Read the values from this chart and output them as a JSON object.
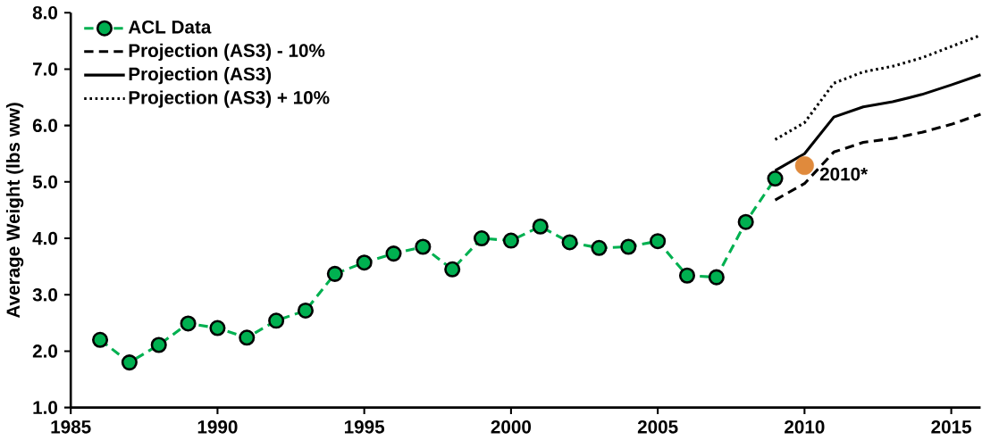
{
  "chart_data": {
    "type": "line",
    "ylabel": "Average Weight (lbs ww)",
    "xlim": [
      1985,
      2016
    ],
    "ylim": [
      1,
      8
    ],
    "xticks": [
      1985,
      1990,
      1995,
      2000,
      2005,
      2010,
      2015
    ],
    "yticks": [
      {
        "value": 1,
        "label": "1.0"
      },
      {
        "value": 2,
        "label": "2.0"
      },
      {
        "value": 3,
        "label": "3.0"
      },
      {
        "value": 4,
        "label": "4.0"
      },
      {
        "value": 5,
        "label": "5.0"
      },
      {
        "value": 6,
        "label": "6.0"
      },
      {
        "value": 7,
        "label": "7.0"
      },
      {
        "value": 8,
        "label": "8.0"
      }
    ],
    "legend": "top left",
    "series": [
      {
        "name": "ACL Data",
        "color": "#00b050",
        "line_style": "dashed",
        "marker": "circle",
        "x": [
          1986,
          1987,
          1988,
          1989,
          1990,
          1991,
          1992,
          1993,
          1994,
          1995,
          1996,
          1997,
          1998,
          1999,
          2000,
          2001,
          2002,
          2003,
          2004,
          2005,
          2006,
          2007,
          2008,
          2009
        ],
        "values": [
          2.2,
          1.8,
          2.11,
          2.49,
          2.41,
          2.24,
          2.54,
          2.72,
          3.37,
          3.57,
          3.73,
          3.85,
          3.45,
          4.0,
          3.96,
          4.21,
          3.93,
          3.83,
          3.85,
          3.95,
          3.34,
          3.31,
          4.29,
          5.06
        ]
      },
      {
        "name": "Projection (AS3) - 10%",
        "color": "#000000",
        "line_style": "dashed",
        "marker": "none",
        "x": [
          2009,
          2010,
          2011,
          2012,
          2013,
          2014,
          2015,
          2016
        ],
        "values": [
          4.68,
          4.97,
          5.53,
          5.7,
          5.77,
          5.88,
          6.02,
          6.2
        ]
      },
      {
        "name": "Projection (AS3)",
        "color": "#000000",
        "line_style": "solid",
        "marker": "none",
        "x": [
          2009,
          2010,
          2011,
          2012,
          2013,
          2014,
          2015,
          2016
        ],
        "values": [
          5.2,
          5.5,
          6.15,
          6.33,
          6.42,
          6.55,
          6.72,
          6.9
        ]
      },
      {
        "name": "Projection (AS3) + 10%",
        "color": "#000000",
        "line_style": "dotted",
        "marker": "none",
        "x": [
          2009,
          2010,
          2011,
          2012,
          2013,
          2014,
          2015,
          2016
        ],
        "values": [
          5.75,
          6.05,
          6.75,
          6.95,
          7.05,
          7.2,
          7.4,
          7.6
        ]
      },
      {
        "type": "scatter",
        "color": "#e08a3c",
        "marker": "circle",
        "x": [
          2010
        ],
        "values": [
          5.29
        ]
      }
    ],
    "annotations": [
      {
        "text": "2010*",
        "x": 2010,
        "y": 5.29
      }
    ]
  }
}
